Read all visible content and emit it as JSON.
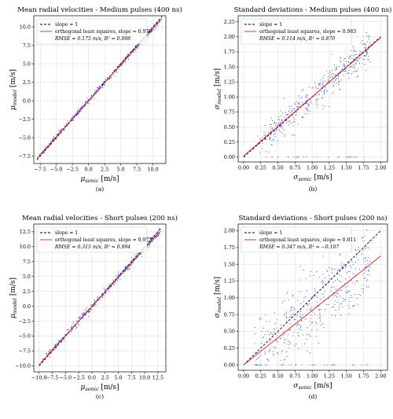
{
  "chart_data": [
    {
      "type": "scatter",
      "title": "Mean radial velocities - Medium pulses (400 ns)",
      "xlabel": "μ",
      "xlabel_sub": "sonic",
      "xlabel_unit": " [m/s]",
      "ylabel": "μ",
      "ylabel_sub": "model",
      "ylabel_unit": " [m/s]",
      "caption": "(a)",
      "xlim": [
        -8.5,
        12
      ],
      "ylim": [
        -8.5,
        11.5
      ],
      "xticks": [
        -7.5,
        -5.0,
        -2.5,
        0.0,
        2.5,
        5.0,
        7.5,
        10.0
      ],
      "yticks": [
        -7.5,
        -5.0,
        -2.5,
        0.0,
        2.5,
        5.0,
        7.5,
        10.0
      ],
      "grid": true,
      "legend_position": "top-left",
      "legend": [
        "slope = 1",
        "orthogonal least squares, slope = 0.976",
        "RMSE = 0.175 m/s, R² = 0.998"
      ],
      "series": [
        {
          "name": "slope = 1",
          "kind": "line",
          "style": "dashed",
          "color": "#000000",
          "x": [
            -8,
            11.4
          ],
          "y": [
            -8,
            11.4
          ]
        },
        {
          "name": "orthogonal least squares, slope = 0.976",
          "kind": "line",
          "style": "solid",
          "color": "#e02020",
          "x": [
            -8,
            11.4
          ],
          "y": [
            -7.8,
            11.13
          ]
        },
        {
          "kind": "points",
          "color": "#2233ee",
          "spread": 0.18,
          "x": [
            -7.8,
            11.2
          ],
          "slope": 0.976,
          "intercept": 0.0,
          "count": 400
        }
      ]
    },
    {
      "type": "scatter",
      "title": "Standard deviations - Medium pulses (400 ns)",
      "xlabel": "σ",
      "xlabel_sub": "sonic",
      "xlabel_unit": " [m/s]",
      "ylabel": "σ",
      "ylabel_sub": "model",
      "ylabel_unit": " [m/s]",
      "caption": "(b)",
      "xlim": [
        -0.08,
        2.1
      ],
      "ylim": [
        -0.08,
        2.35
      ],
      "xticks": [
        0.0,
        0.25,
        0.5,
        0.75,
        1.0,
        1.25,
        1.5,
        1.75,
        2.0
      ],
      "yticks": [
        0.0,
        0.25,
        0.5,
        0.75,
        1.0,
        1.25,
        1.5,
        1.75,
        2.0,
        2.25
      ],
      "grid": true,
      "legend_position": "top-left",
      "legend": [
        "slope = 1",
        "orthogonal least squares, slope = 0.983",
        "RMSE = 0.114 m/s, R² = 0.870"
      ],
      "series": [
        {
          "name": "slope = 1",
          "kind": "line",
          "style": "dashed",
          "color": "#000000",
          "x": [
            0.0,
            2.0
          ],
          "y": [
            0.0,
            2.0
          ]
        },
        {
          "name": "orthogonal least squares, slope = 0.983",
          "kind": "line",
          "style": "solid",
          "color": "#e02020",
          "x": [
            0.0,
            2.0
          ],
          "y": [
            0.02,
            1.986
          ]
        },
        {
          "kind": "points",
          "color": "#2233ee",
          "spread": 0.12,
          "x": [
            0.2,
            1.85
          ],
          "slope": 0.983,
          "intercept": 0.02,
          "count": 450
        }
      ]
    },
    {
      "type": "scatter",
      "title": "Mean radial velocities - Short pulses (200 ns)",
      "xlabel": "μ",
      "xlabel_sub": "sonic",
      "xlabel_unit": " [m/s]",
      "ylabel": "μ",
      "ylabel_sub": "model",
      "ylabel_unit": " [m/s]",
      "caption": "(c)",
      "xlim": [
        -11,
        14
      ],
      "ylim": [
        -11,
        13.8
      ],
      "xticks": [
        -10.0,
        -7.5,
        -5.0,
        -2.5,
        0.0,
        2.5,
        5.0,
        7.5,
        10.0,
        12.5
      ],
      "yticks": [
        -10.0,
        -7.5,
        -5.0,
        -2.5,
        0.0,
        2.5,
        5.0,
        7.5,
        10.0,
        12.5
      ],
      "grid": true,
      "legend_position": "top-left",
      "legend": [
        "slope = 1",
        "orthogonal least squares, slope = 0.973",
        "RMSE = 0.315 m/s, R² = 0.994"
      ],
      "series": [
        {
          "name": "slope = 1",
          "kind": "line",
          "style": "dashed",
          "color": "#000000",
          "x": [
            -10,
            13
          ],
          "y": [
            -10,
            13
          ]
        },
        {
          "name": "orthogonal least squares, slope = 0.973",
          "kind": "line",
          "style": "solid",
          "color": "#e02020",
          "x": [
            -10,
            13
          ],
          "y": [
            -9.8,
            12.6
          ]
        },
        {
          "kind": "points",
          "color": "#2233ee",
          "spread": 0.3,
          "x": [
            -9.5,
            12.8
          ],
          "slope": 0.973,
          "intercept": 0.0,
          "count": 400
        }
      ]
    },
    {
      "type": "scatter",
      "title": "Standard deviations - Short pulses (200 ns)",
      "xlabel": "σ",
      "xlabel_sub": "sonic",
      "xlabel_unit": " [m/s]",
      "ylabel": "σ",
      "ylabel_sub": "model",
      "ylabel_unit": " [m/s]",
      "caption": "(d)",
      "xlim": [
        -0.08,
        2.1
      ],
      "ylim": [
        -0.08,
        2.1
      ],
      "xticks": [
        0.0,
        0.25,
        0.5,
        0.75,
        1.0,
        1.25,
        1.5,
        1.75,
        2.0
      ],
      "yticks": [
        0.0,
        0.25,
        0.5,
        0.75,
        1.0,
        1.25,
        1.5,
        1.75,
        2.0
      ],
      "grid": true,
      "legend_position": "top-left",
      "legend": [
        "slope = 1",
        "orthogonal least squares, slope = 0.811",
        "RMSE = 0.347 m/s, R² = −0.107"
      ],
      "series": [
        {
          "name": "slope = 1",
          "kind": "line",
          "style": "dashed",
          "color": "#000000",
          "x": [
            0.0,
            2.0
          ],
          "y": [
            0.0,
            2.0
          ]
        },
        {
          "name": "orthogonal least squares, slope = 0.811",
          "kind": "line",
          "style": "solid",
          "color": "#e02020",
          "x": [
            0.0,
            2.0
          ],
          "y": [
            0.0,
            1.622
          ]
        },
        {
          "kind": "points",
          "color": "#2233ee",
          "spread": 0.28,
          "x": [
            0.15,
            1.85
          ],
          "slope": 0.811,
          "intercept": 0.0,
          "count": 450
        }
      ]
    }
  ]
}
